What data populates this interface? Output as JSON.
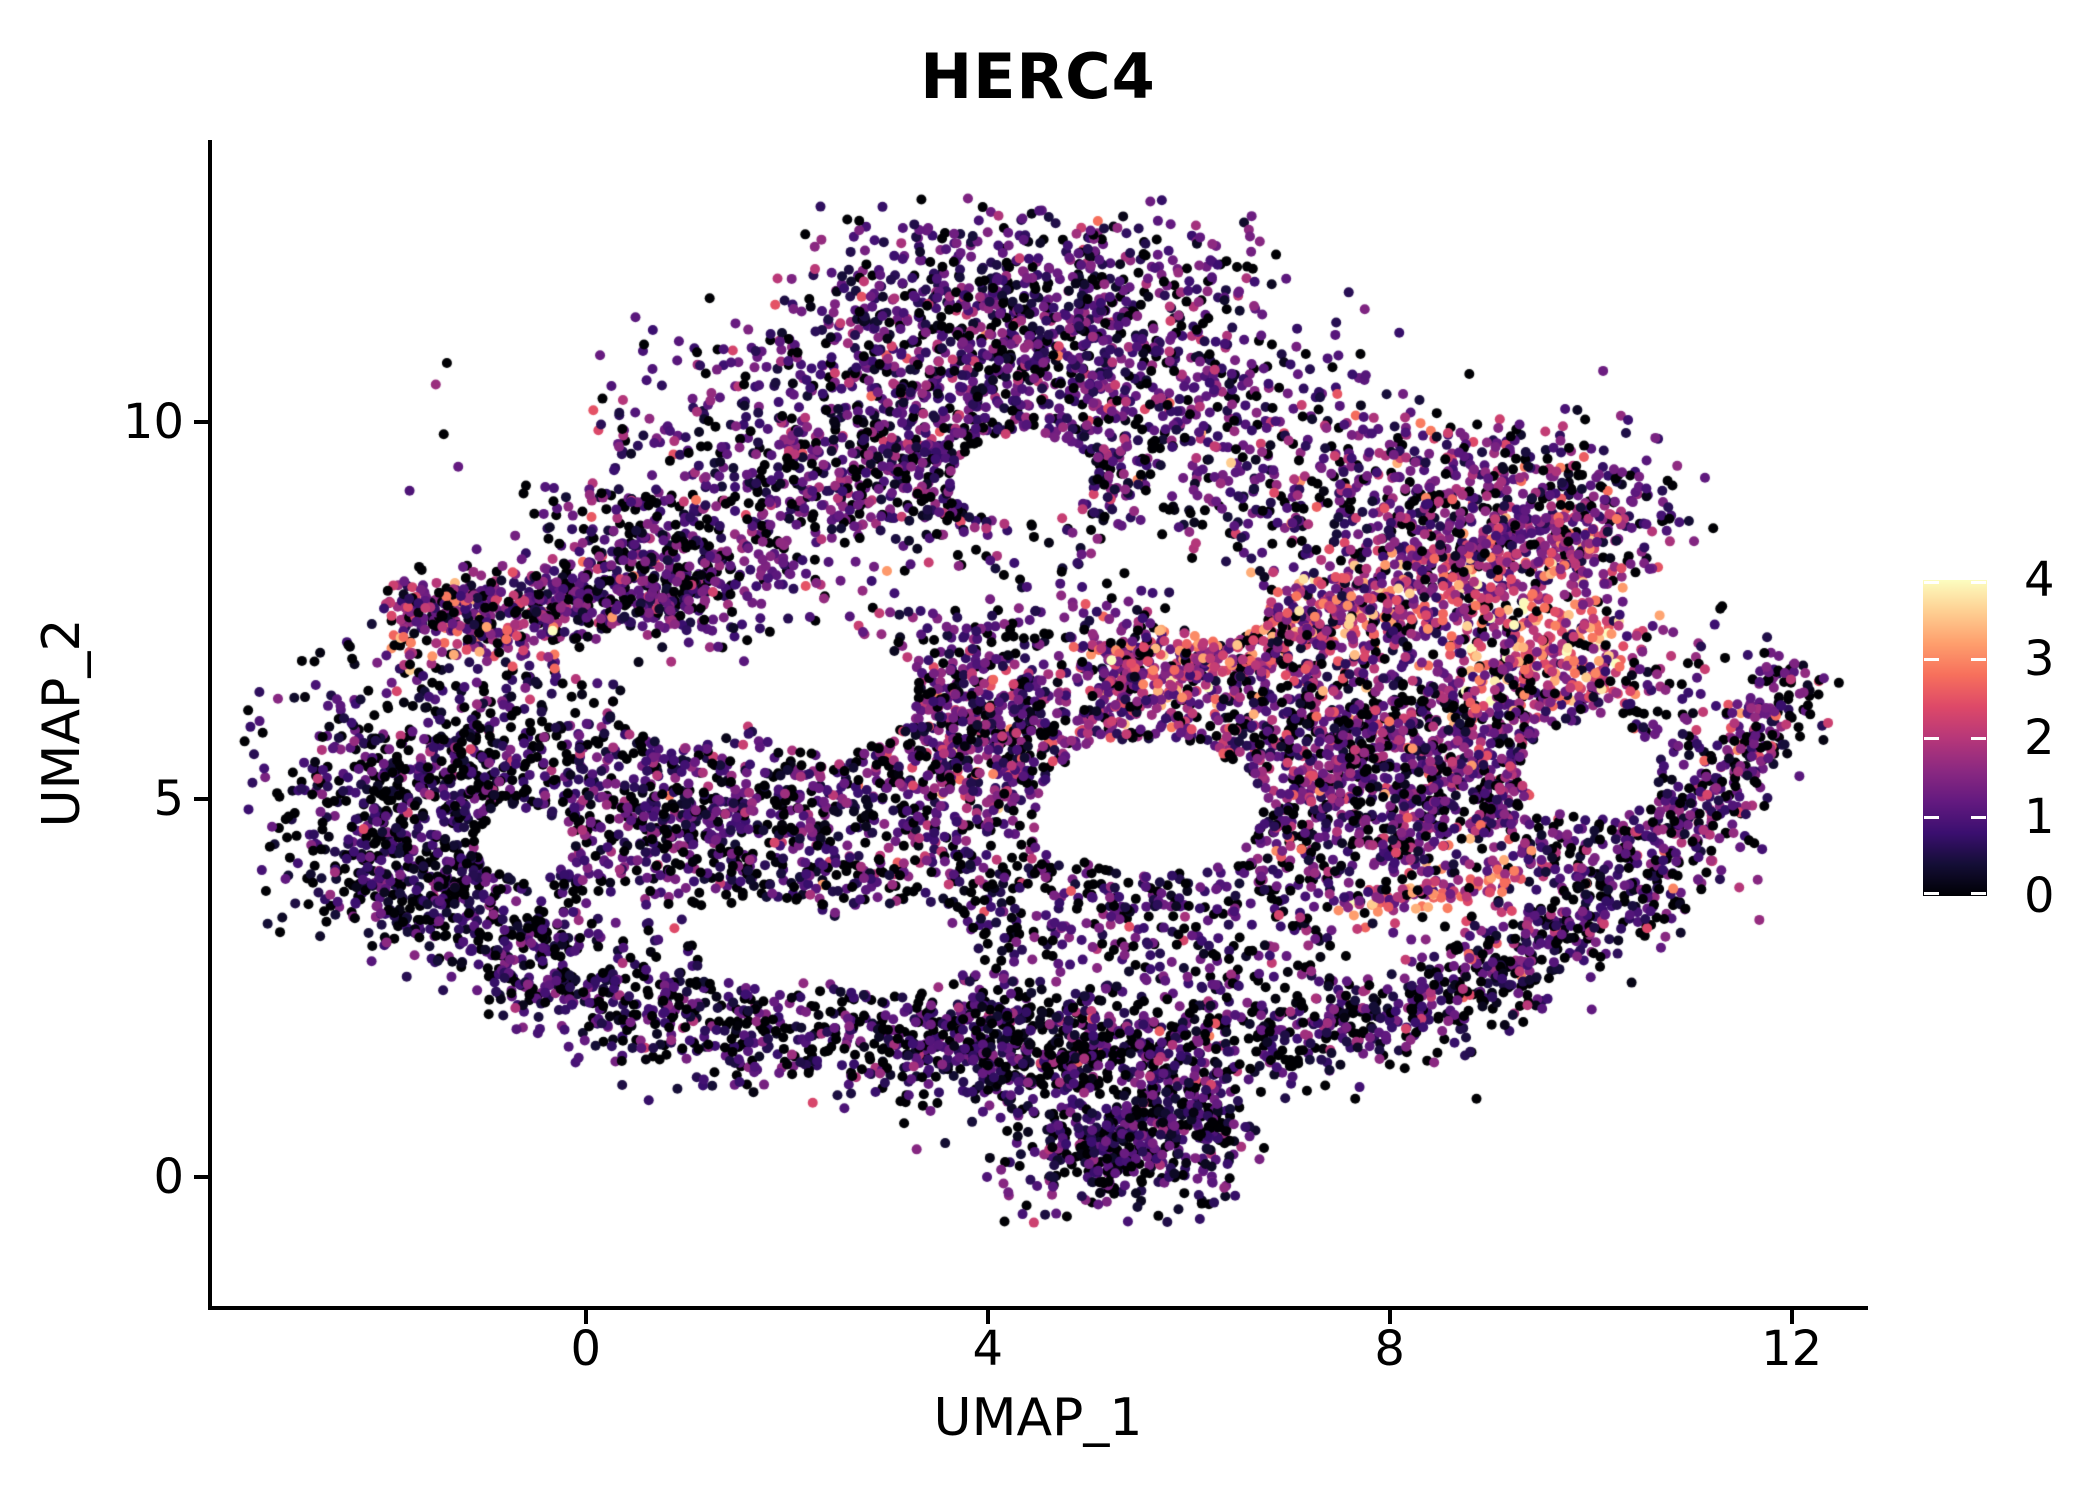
{
  "title": "HERC4",
  "chart_data": {
    "type": "scatter",
    "title": "HERC4",
    "subtitle": "",
    "xlabel": "UMAP_1",
    "ylabel": "UMAP_2",
    "x_ticks": [
      0,
      4,
      8,
      12
    ],
    "y_ticks": [
      0,
      5,
      10
    ],
    "xlim": [
      -3.74,
      12.74
    ],
    "ylim": [
      -1.71,
      13.73
    ],
    "grid": false,
    "legend_position": "right",
    "point_radius_px": 5,
    "background_color": "#ffffff",
    "axis_color": "#000000",
    "colorbar": {
      "tick_values": [
        0,
        1,
        2,
        3,
        4
      ],
      "vmin": 0,
      "vmax": 4,
      "colormap": "magma",
      "stops": [
        {
          "t": 0.0,
          "color": "#000004"
        },
        {
          "t": 0.1,
          "color": "#140e36"
        },
        {
          "t": 0.2,
          "color": "#3b0f70"
        },
        {
          "t": 0.3,
          "color": "#641a80"
        },
        {
          "t": 0.4,
          "color": "#8c2981"
        },
        {
          "t": 0.5,
          "color": "#b73779"
        },
        {
          "t": 0.6,
          "color": "#de4968"
        },
        {
          "t": 0.7,
          "color": "#f7705c"
        },
        {
          "t": 0.8,
          "color": "#fe9f6d"
        },
        {
          "t": 0.9,
          "color": "#fecf92"
        },
        {
          "t": 1.0,
          "color": "#fcfdbf"
        }
      ]
    },
    "point_generator": {
      "seed": 7,
      "note": "Approximately 12700 cells; per-cell HERC4 expression 0-4 mapped through magma colormap. Clusters/bands/holes summarize the observed UMAP density in data coordinates.",
      "clusters": [
        {
          "type": "gauss",
          "cx": 4.4,
          "cy": 11.6,
          "rx": 1.9,
          "ry": 1.0,
          "n": 750,
          "zero": 0.13,
          "mean": 0.95,
          "sd": 0.6
        },
        {
          "type": "gauss",
          "cx": 4.0,
          "cy": 10.4,
          "rx": 2.9,
          "ry": 0.85,
          "n": 650,
          "zero": 0.15,
          "mean": 1.0,
          "sd": 0.6
        },
        {
          "type": "gauss",
          "cx": 3.6,
          "cy": 9.3,
          "rx": 2.6,
          "ry": 0.75,
          "n": 600,
          "zero": 0.17,
          "mean": 1.0,
          "sd": 0.6
        },
        {
          "type": "gauss",
          "cx": 0.9,
          "cy": 8.1,
          "rx": 1.2,
          "ry": 0.8,
          "n": 420,
          "zero": 0.2,
          "mean": 0.95,
          "sd": 0.6
        },
        {
          "type": "band",
          "x1": -1.9,
          "y1": 7.5,
          "x2": 1.0,
          "y2": 7.65,
          "w": 0.45,
          "n": 350,
          "zero": 0.18,
          "mean": 1.0,
          "sd": 0.7
        },
        {
          "type": "gauss",
          "cx": -1.1,
          "cy": 7.3,
          "rx": 0.8,
          "ry": 0.55,
          "n": 160,
          "zero": 0.08,
          "mean": 1.7,
          "sd": 0.95
        },
        {
          "type": "gauss",
          "cx": -1.4,
          "cy": 5.1,
          "rx": 1.5,
          "ry": 1.5,
          "n": 750,
          "zero": 0.32,
          "mean": 0.7,
          "sd": 0.55
        },
        {
          "type": "gauss",
          "cx": 1.2,
          "cy": 4.9,
          "rx": 1.7,
          "ry": 1.2,
          "n": 650,
          "zero": 0.22,
          "mean": 0.9,
          "sd": 0.6
        },
        {
          "type": "gauss",
          "cx": 4.0,
          "cy": 5.9,
          "rx": 1.5,
          "ry": 1.2,
          "n": 700,
          "zero": 0.15,
          "mean": 1.15,
          "sd": 0.7
        },
        {
          "type": "gauss",
          "cx": 4.6,
          "cy": 3.6,
          "rx": 3.2,
          "ry": 1.3,
          "n": 650,
          "zero": 0.25,
          "mean": 0.85,
          "sd": 0.6
        },
        {
          "type": "band",
          "x1": -2.2,
          "y1": 4.3,
          "x2": 0.2,
          "y2": 2.2,
          "w": 0.75,
          "n": 480,
          "zero": 0.3,
          "mean": 0.7,
          "sd": 0.5
        },
        {
          "type": "band",
          "x1": 0.2,
          "y1": 2.2,
          "x2": 5.0,
          "y2": 1.35,
          "w": 0.7,
          "n": 620,
          "zero": 0.28,
          "mean": 0.75,
          "sd": 0.55
        },
        {
          "type": "band",
          "x1": 5.0,
          "y1": 1.5,
          "x2": 8.6,
          "y2": 2.2,
          "w": 0.65,
          "n": 480,
          "zero": 0.27,
          "mean": 0.85,
          "sd": 0.6
        },
        {
          "type": "band",
          "x1": 8.6,
          "y1": 2.3,
          "x2": 10.9,
          "y2": 4.2,
          "w": 0.6,
          "n": 380,
          "zero": 0.25,
          "mean": 0.95,
          "sd": 0.65
        },
        {
          "type": "gauss",
          "cx": 5.35,
          "cy": 0.35,
          "rx": 1.0,
          "ry": 0.7,
          "n": 400,
          "zero": 0.25,
          "mean": 0.8,
          "sd": 0.55
        },
        {
          "type": "gauss",
          "cx": 6.1,
          "cy": 0.9,
          "rx": 0.5,
          "ry": 0.4,
          "n": 120,
          "zero": 0.25,
          "mean": 0.8,
          "sd": 0.55
        },
        {
          "type": "gauss",
          "cx": 4.3,
          "cy": 1.9,
          "rx": 1.3,
          "ry": 0.6,
          "n": 250,
          "zero": 0.25,
          "mean": 0.8,
          "sd": 0.55
        },
        {
          "type": "gauss",
          "cx": 4.2,
          "cy": 6.8,
          "rx": 4.6,
          "ry": 3.6,
          "n": 550,
          "zero": 0.2,
          "mean": 1.0,
          "sd": 0.7
        },
        {
          "type": "gauss",
          "cx": 8.0,
          "cy": 6.5,
          "rx": 2.6,
          "ry": 2.2,
          "n": 300,
          "zero": 0.2,
          "mean": 1.1,
          "sd": 0.75
        },
        {
          "type": "gauss",
          "cx": 9.55,
          "cy": 2.3,
          "rx": 0.12,
          "ry": 0.1,
          "n": 3,
          "zero": 0.0,
          "mean": 1.3,
          "sd": 0.4
        },
        {
          "type": "band",
          "x1": 5.2,
          "y1": 6.6,
          "x2": 10.1,
          "y2": 8.4,
          "w": 0.6,
          "n": 850,
          "zero": 0.07,
          "mean": 1.9,
          "sd": 0.85
        },
        {
          "type": "gauss",
          "cx": 9.6,
          "cy": 6.9,
          "rx": 0.9,
          "ry": 0.7,
          "n": 260,
          "zero": 0.04,
          "mean": 2.5,
          "sd": 0.8
        },
        {
          "type": "band",
          "x1": 7.4,
          "y1": 3.55,
          "x2": 9.3,
          "y2": 3.95,
          "w": 0.22,
          "n": 70,
          "zero": 0.02,
          "mean": 2.7,
          "sd": 0.6
        },
        {
          "type": "band",
          "x1": 10.9,
          "y1": 4.4,
          "x2": 12.1,
          "y2": 6.8,
          "w": 0.45,
          "n": 260,
          "zero": 0.25,
          "mean": 1.1,
          "sd": 0.7
        },
        {
          "type": "gauss",
          "cx": 9.2,
          "cy": 5.3,
          "rx": 1.9,
          "ry": 1.6,
          "n": 800,
          "zero": 0.2,
          "mean": 1.15,
          "sd": 0.75
        },
        {
          "type": "gauss",
          "cx": 7.3,
          "cy": 5.6,
          "rx": 1.6,
          "ry": 1.4,
          "n": 600,
          "zero": 0.18,
          "mean": 1.2,
          "sd": 0.8
        },
        {
          "type": "gauss",
          "cx": 8.3,
          "cy": 9.0,
          "rx": 1.8,
          "ry": 1.0,
          "n": 500,
          "zero": 0.15,
          "mean": 1.2,
          "sd": 0.8
        },
        {
          "type": "gauss",
          "cx": 9.9,
          "cy": 8.9,
          "rx": 1.0,
          "ry": 0.7,
          "n": 150,
          "zero": 0.2,
          "mean": 1.0,
          "sd": 0.7
        }
      ],
      "holes": [
        {
          "cx": 2.4,
          "cy": 6.4,
          "rx": 0.9,
          "ry": 0.8
        },
        {
          "cx": 5.6,
          "cy": 4.9,
          "rx": 1.1,
          "ry": 0.9
        },
        {
          "cx": 4.35,
          "cy": 9.25,
          "rx": 0.7,
          "ry": 0.6
        },
        {
          "cx": 10.0,
          "cy": 5.4,
          "rx": 0.7,
          "ry": 0.65
        },
        {
          "cx": 1.0,
          "cy": 6.2,
          "rx": 0.6,
          "ry": 0.5
        },
        {
          "cx": 3.0,
          "cy": 3.0,
          "rx": 0.8,
          "ry": 0.6
        },
        {
          "cx": 1.8,
          "cy": 3.1,
          "rx": 0.7,
          "ry": 0.6
        },
        {
          "cx": 6.3,
          "cy": 7.6,
          "rx": 0.5,
          "ry": 0.5
        },
        {
          "cx": -0.6,
          "cy": 4.4,
          "rx": 0.5,
          "ry": 0.45
        }
      ]
    }
  }
}
